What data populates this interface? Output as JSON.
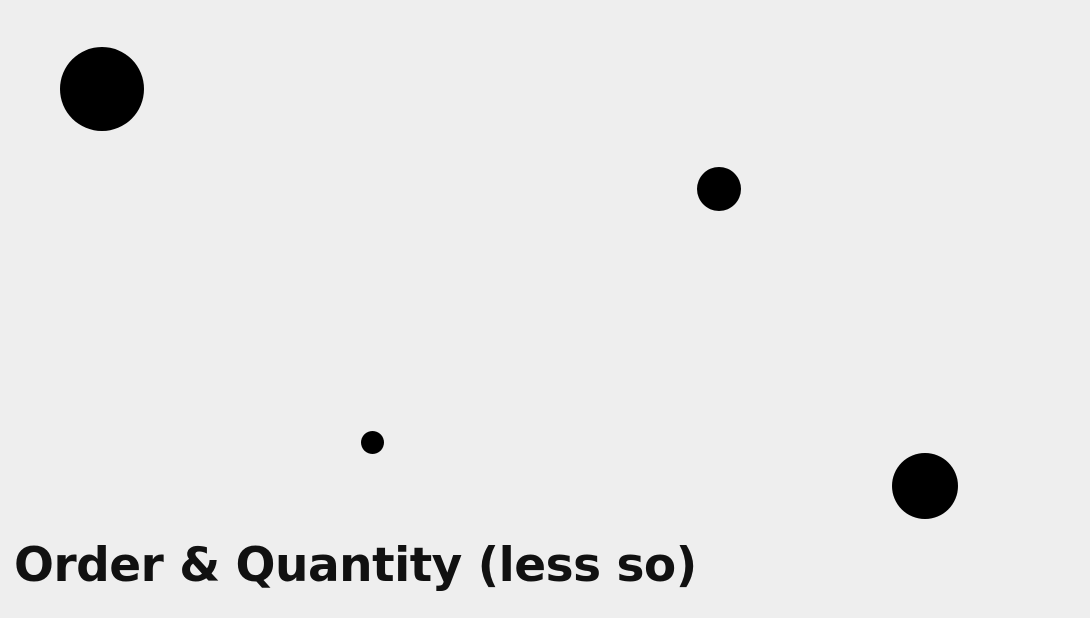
{
  "caption": "Order & Quantity (less so)",
  "colors": {
    "background": "#eeeeee",
    "dot": "#000000",
    "text": "#111111"
  },
  "dots": [
    {
      "size_rank": 1
    },
    {
      "size_rank": 3
    },
    {
      "size_rank": 4
    },
    {
      "size_rank": 2
    }
  ]
}
